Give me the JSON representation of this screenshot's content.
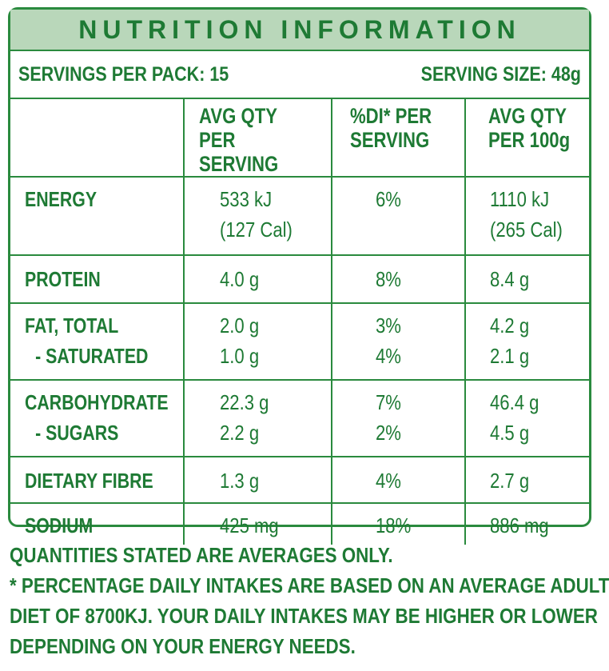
{
  "title": "NUTRITION INFORMATION",
  "servings_per_pack": "SERVINGS PER PACK: 15",
  "serving_size": "SERVING SIZE: 48g",
  "headers": {
    "col1": "",
    "col2_line1": "AVG QTY",
    "col2_line2": "PER SERVING",
    "col3_line1": "%DI* PER",
    "col3_line2": "SERVING",
    "col4_line1": "AVG QTY",
    "col4_line2": "PER 100g"
  },
  "rows": {
    "energy": {
      "name": "ENERGY",
      "serving_1": "533 kJ",
      "serving_2": "(127 Cal)",
      "di": "6%",
      "per100_1": "1110 kJ",
      "per100_2": "(265 Cal)"
    },
    "protein": {
      "name": "PROTEIN",
      "serving": "4.0 g",
      "di": "8%",
      "per100": "8.4 g"
    },
    "fat": {
      "name": "FAT, TOTAL",
      "serving": "2.0 g",
      "di": "3%",
      "per100": "4.2 g",
      "sub_name": "- SATURATED",
      "sub_serving": "1.0 g",
      "sub_di": "4%",
      "sub_per100": "2.1 g"
    },
    "carbohydrate": {
      "name": "CARBOHYDRATE",
      "serving": "22.3 g",
      "di": "7%",
      "per100": "46.4 g",
      "sub_name": "- SUGARS",
      "sub_serving": "2.2 g",
      "sub_di": "2%",
      "sub_per100": "4.5 g"
    },
    "fibre": {
      "name": "DIETARY FIBRE",
      "serving": "1.3 g",
      "di": "4%",
      "per100": "2.7 g"
    },
    "sodium": {
      "name": "SODIUM",
      "serving": "425 mg",
      "di": "18%",
      "per100": "886 mg"
    }
  },
  "footer": {
    "line1": "QUANTITIES STATED ARE AVERAGES ONLY.",
    "line2": "* PERCENTAGE DAILY INTAKES ARE BASED ON AN AVERAGE ADULT",
    "line3": "DIET OF 8700KJ. YOUR DAILY INTAKES MAY BE HIGHER OR LOWER",
    "line4": "DEPENDING ON YOUR ENERGY NEEDS."
  },
  "colors": {
    "text_green": "#1e7a34",
    "border_green": "#2a8a3e",
    "header_band": "#b9d7ba"
  }
}
